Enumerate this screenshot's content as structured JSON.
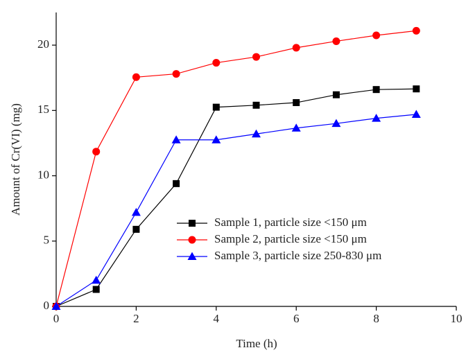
{
  "chart_data": {
    "type": "line",
    "x_label": "Time (h)",
    "y_label": "Amount of Cr(VI) (mg)",
    "x": [
      0,
      1,
      2,
      3,
      4,
      5,
      6,
      7,
      8,
      9
    ],
    "series": [
      {
        "name": "Sample 1, particle size <150 μm",
        "color": "#000000",
        "marker": "square",
        "values": [
          0,
          1.3,
          5.9,
          9.4,
          15.25,
          15.4,
          15.6,
          16.2,
          16.6,
          16.65
        ]
      },
      {
        "name": "Sample 2, particle size <150 μm",
        "color": "#ff0000",
        "marker": "circle",
        "values": [
          0,
          11.85,
          17.55,
          17.8,
          18.65,
          19.1,
          19.8,
          20.3,
          20.75,
          21.1
        ]
      },
      {
        "name": "Sample 3, particle size 250-830 μm",
        "color": "#0000ff",
        "marker": "triangle",
        "values": [
          0,
          2.0,
          7.2,
          12.75,
          12.75,
          13.2,
          13.65,
          14.0,
          14.4,
          14.7
        ]
      }
    ],
    "xlim": [
      0,
      10
    ],
    "xticks": [
      0,
      2,
      4,
      6,
      8,
      10
    ],
    "ylim": [
      0,
      22.5
    ],
    "yticks": [
      0,
      5,
      10,
      15,
      20
    ],
    "legend": "center right"
  }
}
